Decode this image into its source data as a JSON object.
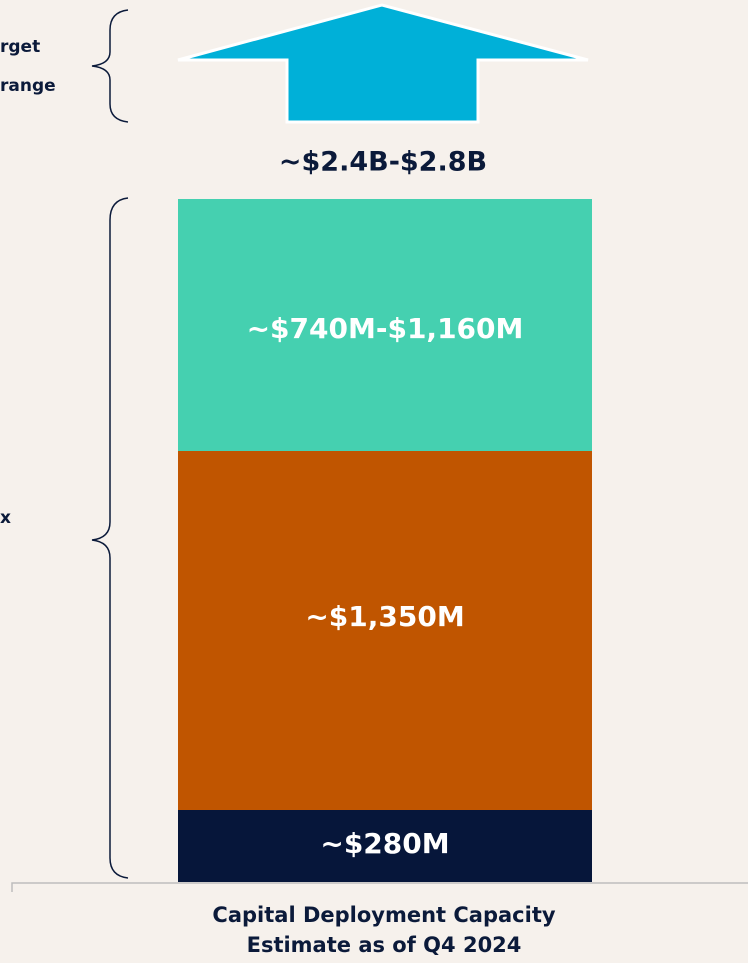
{
  "side_labels": {
    "top": [
      "rget",
      "range"
    ],
    "middle": "x"
  },
  "total": "~$2.4B-$2.8B",
  "segments": [
    "~$740M-$1,160M",
    "~$1,350M",
    "~$280M"
  ],
  "caption": [
    "Capital Deployment Capacity",
    "Estimate as of Q4 2024"
  ]
}
